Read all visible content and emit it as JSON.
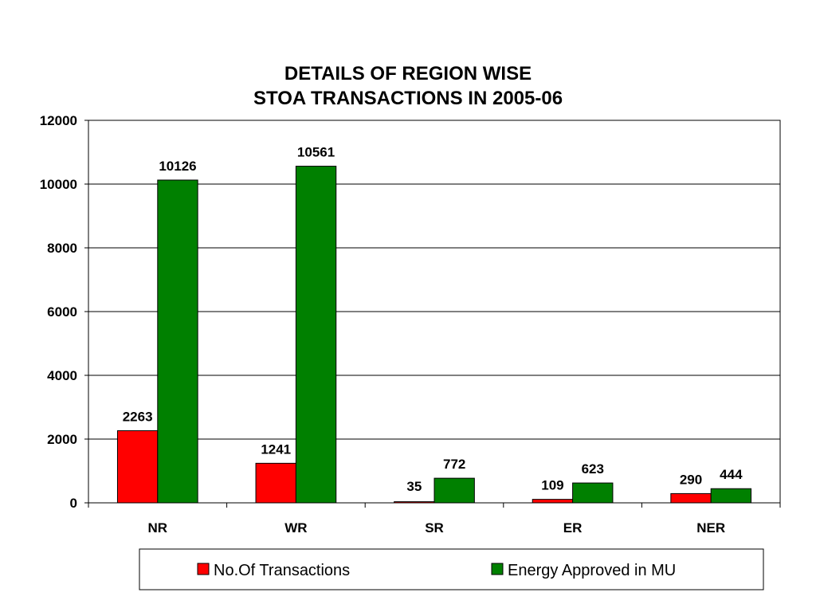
{
  "chart_data": {
    "type": "bar",
    "title_lines": [
      "DETAILS OF REGION WISE",
      "STOA TRANSACTIONS IN 2005-06"
    ],
    "categories": [
      "NR",
      "WR",
      "SR",
      "ER",
      "NER"
    ],
    "series": [
      {
        "name": "No.Of Transactions",
        "color": "#ff0000",
        "values": [
          2263,
          1241,
          35,
          109,
          290
        ]
      },
      {
        "name": "Energy Approved in MU",
        "color": "#008000",
        "values": [
          10126,
          10561,
          772,
          623,
          444
        ]
      }
    ],
    "ylim": [
      0,
      12000
    ],
    "yticks": [
      "0",
      "2000",
      "4000",
      "6000",
      "8000",
      "10000",
      "12000"
    ],
    "ystep": 2000,
    "grid": true,
    "legend_position": "bottom"
  }
}
